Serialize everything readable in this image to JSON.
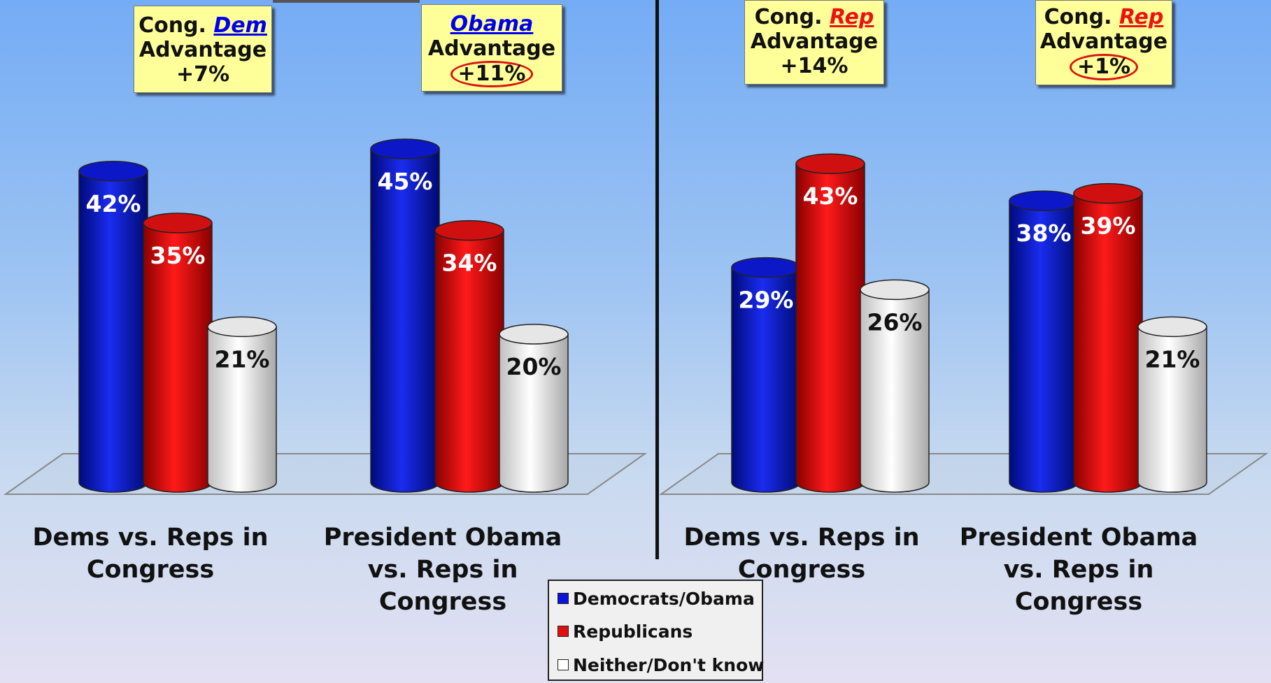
{
  "chart_data": [
    {
      "type": "bar",
      "categories": [
        "Dems vs. Reps in Congress",
        "President Obama vs. Reps in Congress"
      ],
      "series": [
        {
          "name": "Democrats/Obama",
          "values": [
            42,
            45
          ]
        },
        {
          "name": "Republicans",
          "values": [
            35,
            34
          ]
        },
        {
          "name": "Neither/Don't know",
          "values": [
            21,
            20
          ]
        }
      ],
      "value_labels": [
        [
          "42%",
          "35%",
          "21%"
        ],
        [
          "45%",
          "34%",
          "20%"
        ]
      ]
    },
    {
      "type": "bar",
      "categories": [
        "Dems vs. Reps in Congress",
        "President Obama vs. Reps in Congress"
      ],
      "series": [
        {
          "name": "Democrats/Obama",
          "values": [
            29,
            38
          ]
        },
        {
          "name": "Republicans",
          "values": [
            43,
            39
          ]
        },
        {
          "name": "Neither/Don't know",
          "values": [
            26,
            21
          ]
        }
      ],
      "value_labels": [
        [
          "29%",
          "43%",
          "26%"
        ],
        [
          "38%",
          "39%",
          "21%"
        ]
      ]
    }
  ],
  "callouts": [
    {
      "prefix": "Cong.",
      "party": "Dem",
      "line2": "Advantage",
      "value": "+7%"
    },
    {
      "prefix": "",
      "party": "Obama",
      "line2": "Advantage",
      "value": "+11%"
    },
    {
      "prefix": "Cong.",
      "party": "Rep",
      "line2": "Advantage",
      "value": "+14%"
    },
    {
      "prefix": "Cong.",
      "party": "Rep",
      "line2": "Advantage",
      "value": "+1%"
    }
  ],
  "category_labels": [
    [
      "Dems vs. Reps in",
      "Congress"
    ],
    [
      "President Obama",
      "vs. Reps in",
      "Congress"
    ],
    [
      "Dems vs. Reps in",
      "Congress"
    ],
    [
      "President Obama",
      "vs. Reps in",
      "Congress"
    ]
  ],
  "legend": {
    "items": [
      "Democrats/Obama",
      "Republicans",
      "Neither/Don't know"
    ],
    "colors": [
      "#0a14d8",
      "#e01010",
      "#ffffff"
    ]
  },
  "colors": {
    "dem": "#0a14d8",
    "rep": "#e01010",
    "neither": "#ffffff"
  }
}
